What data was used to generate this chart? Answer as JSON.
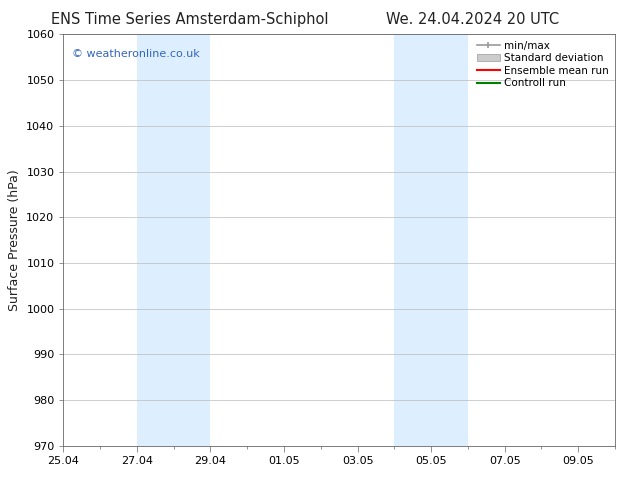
{
  "title_left": "ENS Time Series Amsterdam-Schiphol",
  "title_right": "We. 24.04.2024 20 UTC",
  "ylabel": "Surface Pressure (hPa)",
  "ylim": [
    970,
    1060
  ],
  "yticks": [
    970,
    980,
    990,
    1000,
    1010,
    1020,
    1030,
    1040,
    1050,
    1060
  ],
  "xlim": [
    0,
    15
  ],
  "xtick_labels": [
    "25.04",
    "27.04",
    "29.04",
    "01.05",
    "03.05",
    "05.05",
    "07.05",
    "09.05"
  ],
  "xtick_positions": [
    0,
    2,
    4,
    6,
    8,
    10,
    12,
    14
  ],
  "shaded_bands": [
    {
      "start": 2,
      "end": 4
    },
    {
      "start": 9,
      "end": 11
    }
  ],
  "shade_color": "#ddeeff",
  "watermark_text": "© weatheronline.co.uk",
  "watermark_color": "#3366bb",
  "bg_color": "#ffffff",
  "grid_color": "#bbbbbb",
  "spine_color": "#666666",
  "font_color": "#222222",
  "title_fontsize": 10.5,
  "axis_label_fontsize": 9,
  "tick_fontsize": 8,
  "legend_fontsize": 7.5,
  "legend_items": [
    {
      "label": "min/max",
      "type": "minmax",
      "color": "#999999"
    },
    {
      "label": "Standard deviation",
      "type": "patch",
      "color": "#cccccc"
    },
    {
      "label": "Ensemble mean run",
      "type": "line",
      "color": "red"
    },
    {
      "label": "Controll run",
      "type": "line",
      "color": "green"
    }
  ]
}
